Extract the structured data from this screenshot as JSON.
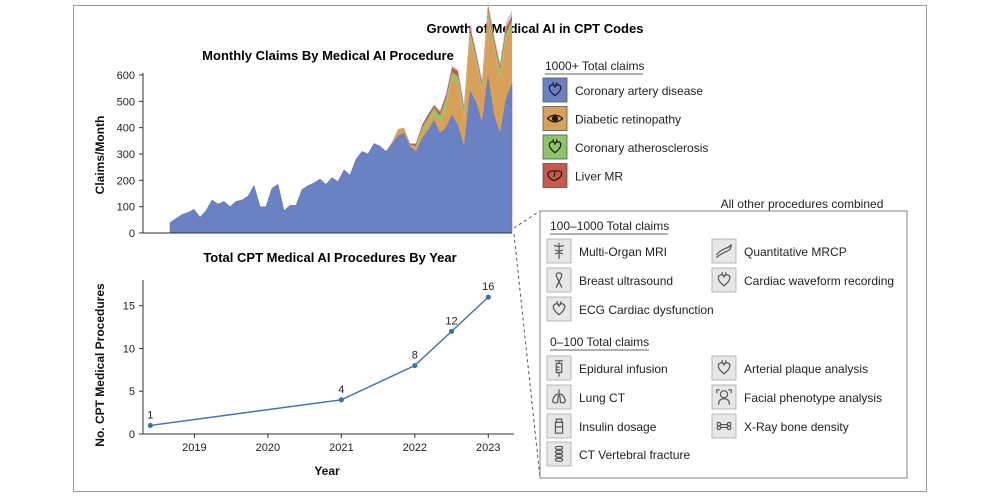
{
  "figure_title": "Growth of Medical AI in CPT Codes",
  "colors": {
    "coronary_artery_disease": "#6a82c4",
    "diabetic_retinopathy": "#d9a05a",
    "coronary_atherosclerosis": "#8ec56a",
    "liver_mr": "#c9584a",
    "other": "#c8c8c8",
    "line": "#3b73b0"
  },
  "chart_data": [
    {
      "type": "area",
      "title": "Monthly Claims By Medical AI Procedure",
      "ylabel": "Claims/Month",
      "xlabel": "",
      "ylim": [
        0,
        600
      ],
      "yticks": [
        0,
        100,
        200,
        300,
        400,
        500,
        600
      ],
      "x_month_index": [
        0,
        1,
        2,
        3,
        4,
        5,
        6,
        7,
        8,
        9,
        10,
        11,
        12,
        13,
        14,
        15,
        16,
        17,
        18,
        19,
        20,
        21,
        22,
        23,
        24,
        25,
        26,
        27,
        28,
        29,
        30,
        31,
        32,
        33,
        34,
        35,
        36,
        37,
        38,
        39,
        40,
        41,
        42,
        43,
        44,
        45,
        46,
        47,
        48,
        49,
        50,
        51,
        52,
        53,
        54,
        55,
        56,
        57
      ],
      "series": [
        {
          "name": "Coronary artery disease",
          "color_key": "coronary_artery_disease",
          "values": [
            40,
            55,
            70,
            78,
            90,
            60,
            85,
            125,
            110,
            120,
            100,
            120,
            125,
            140,
            180,
            100,
            100,
            170,
            185,
            85,
            105,
            105,
            165,
            180,
            190,
            205,
            185,
            210,
            195,
            240,
            220,
            280,
            310,
            300,
            340,
            330,
            310,
            340,
            370,
            380,
            330,
            310,
            360,
            390,
            430,
            380,
            400,
            450,
            410,
            330,
            540,
            500,
            420,
            600,
            450,
            380,
            510,
            570
          ]
        },
        {
          "name": "Diabetic retinopathy",
          "color_key": "diabetic_retinopathy",
          "values": [
            0,
            0,
            0,
            0,
            0,
            0,
            0,
            0,
            0,
            0,
            0,
            0,
            0,
            0,
            0,
            0,
            0,
            0,
            0,
            0,
            0,
            0,
            0,
            0,
            0,
            0,
            0,
            0,
            0,
            0,
            0,
            0,
            0,
            0,
            0,
            0,
            0,
            5,
            25,
            20,
            5,
            10,
            20,
            30,
            25,
            40,
            80,
            140,
            160,
            110,
            200,
            150,
            120,
            220,
            250,
            210,
            230,
            210
          ]
        },
        {
          "name": "Coronary atherosclerosis",
          "color_key": "coronary_atherosclerosis",
          "values": [
            0,
            0,
            0,
            0,
            0,
            0,
            0,
            0,
            0,
            0,
            0,
            0,
            0,
            0,
            0,
            0,
            0,
            0,
            0,
            0,
            0,
            0,
            0,
            0,
            0,
            0,
            0,
            0,
            0,
            0,
            0,
            0,
            0,
            0,
            0,
            0,
            0,
            0,
            0,
            0,
            0,
            10,
            20,
            15,
            20,
            25,
            30,
            20,
            25,
            25,
            25,
            20,
            20,
            25,
            20,
            30,
            20,
            25
          ]
        },
        {
          "name": "Liver MR",
          "color_key": "liver_mr",
          "values": [
            0,
            0,
            0,
            0,
            0,
            0,
            0,
            0,
            0,
            0,
            0,
            0,
            0,
            0,
            0,
            0,
            0,
            0,
            0,
            0,
            0,
            0,
            0,
            0,
            0,
            0,
            0,
            0,
            0,
            0,
            0,
            0,
            0,
            0,
            0,
            0,
            0,
            0,
            0,
            0,
            5,
            10,
            10,
            15,
            10,
            15,
            15,
            20,
            20,
            15,
            20,
            15,
            15,
            20,
            20,
            15,
            20,
            20
          ]
        },
        {
          "name": "All other procedures combined",
          "color_key": "other",
          "values": [
            0,
            0,
            0,
            0,
            0,
            0,
            0,
            0,
            0,
            0,
            0,
            0,
            0,
            0,
            0,
            0,
            0,
            0,
            0,
            0,
            0,
            0,
            0,
            0,
            0,
            0,
            0,
            0,
            0,
            0,
            0,
            0,
            0,
            0,
            0,
            0,
            0,
            0,
            0,
            0,
            0,
            0,
            0,
            0,
            5,
            5,
            5,
            5,
            5,
            10,
            10,
            10,
            10,
            15,
            15,
            15,
            20,
            20
          ]
        }
      ]
    },
    {
      "type": "line",
      "title": "Total CPT Medical AI Procedures By Year",
      "xlabel": "Year",
      "ylabel": "No. CPT Medical Procedures",
      "x": [
        2018.4,
        2021.0,
        2022.0,
        2022.5,
        2023.0
      ],
      "y": [
        1,
        4,
        8,
        12,
        16
      ],
      "point_labels": [
        "1",
        "4",
        "8",
        "12",
        "16"
      ],
      "xlim": [
        2018.3,
        2023.35
      ],
      "ylim": [
        0,
        18
      ],
      "xticks": [
        "2019",
        "2020",
        "2021",
        "2022",
        "2023"
      ],
      "yticks": [
        "0",
        "5",
        "10",
        "15"
      ]
    }
  ],
  "legend": {
    "group1_header": "1000+ Total claims",
    "group1": [
      {
        "label": "Coronary artery disease",
        "icon": "heart-icon",
        "color_key": "coronary_artery_disease"
      },
      {
        "label": "Diabetic retinopathy",
        "icon": "eye-icon",
        "color_key": "diabetic_retinopathy"
      },
      {
        "label": "Coronary atherosclerosis",
        "icon": "heart-icon",
        "color_key": "coronary_atherosclerosis"
      },
      {
        "label": "Liver MR",
        "icon": "liver-icon",
        "color_key": "liver_mr"
      }
    ],
    "other_header": "All other procedures combined",
    "group2_header": "100–1000 Total claims",
    "group2": [
      {
        "label": "Multi-Organ MRI",
        "icon": "caduceus-icon"
      },
      {
        "label": "Quantitative MRCP",
        "icon": "pancreas-icon"
      },
      {
        "label": "Breast ultrasound",
        "icon": "ribbon-icon"
      },
      {
        "label": "Cardiac waveform recording",
        "icon": "heart-icon"
      },
      {
        "label": "ECG Cardiac dysfunction",
        "icon": "heart-icon"
      }
    ],
    "group3_header": "0–100 Total claims",
    "group3": [
      {
        "label": "Epidural infusion",
        "icon": "syringe-icon"
      },
      {
        "label": "Arterial plaque analysis",
        "icon": "heart-icon"
      },
      {
        "label": "Lung CT",
        "icon": "lungs-icon"
      },
      {
        "label": "Facial phenotype analysis",
        "icon": "face-icon"
      },
      {
        "label": "Insulin dosage",
        "icon": "insulin-vial-icon"
      },
      {
        "label": "X-Ray bone density",
        "icon": "bone-icon"
      },
      {
        "label": "CT Vertebral fracture",
        "icon": "spine-icon"
      }
    ]
  }
}
